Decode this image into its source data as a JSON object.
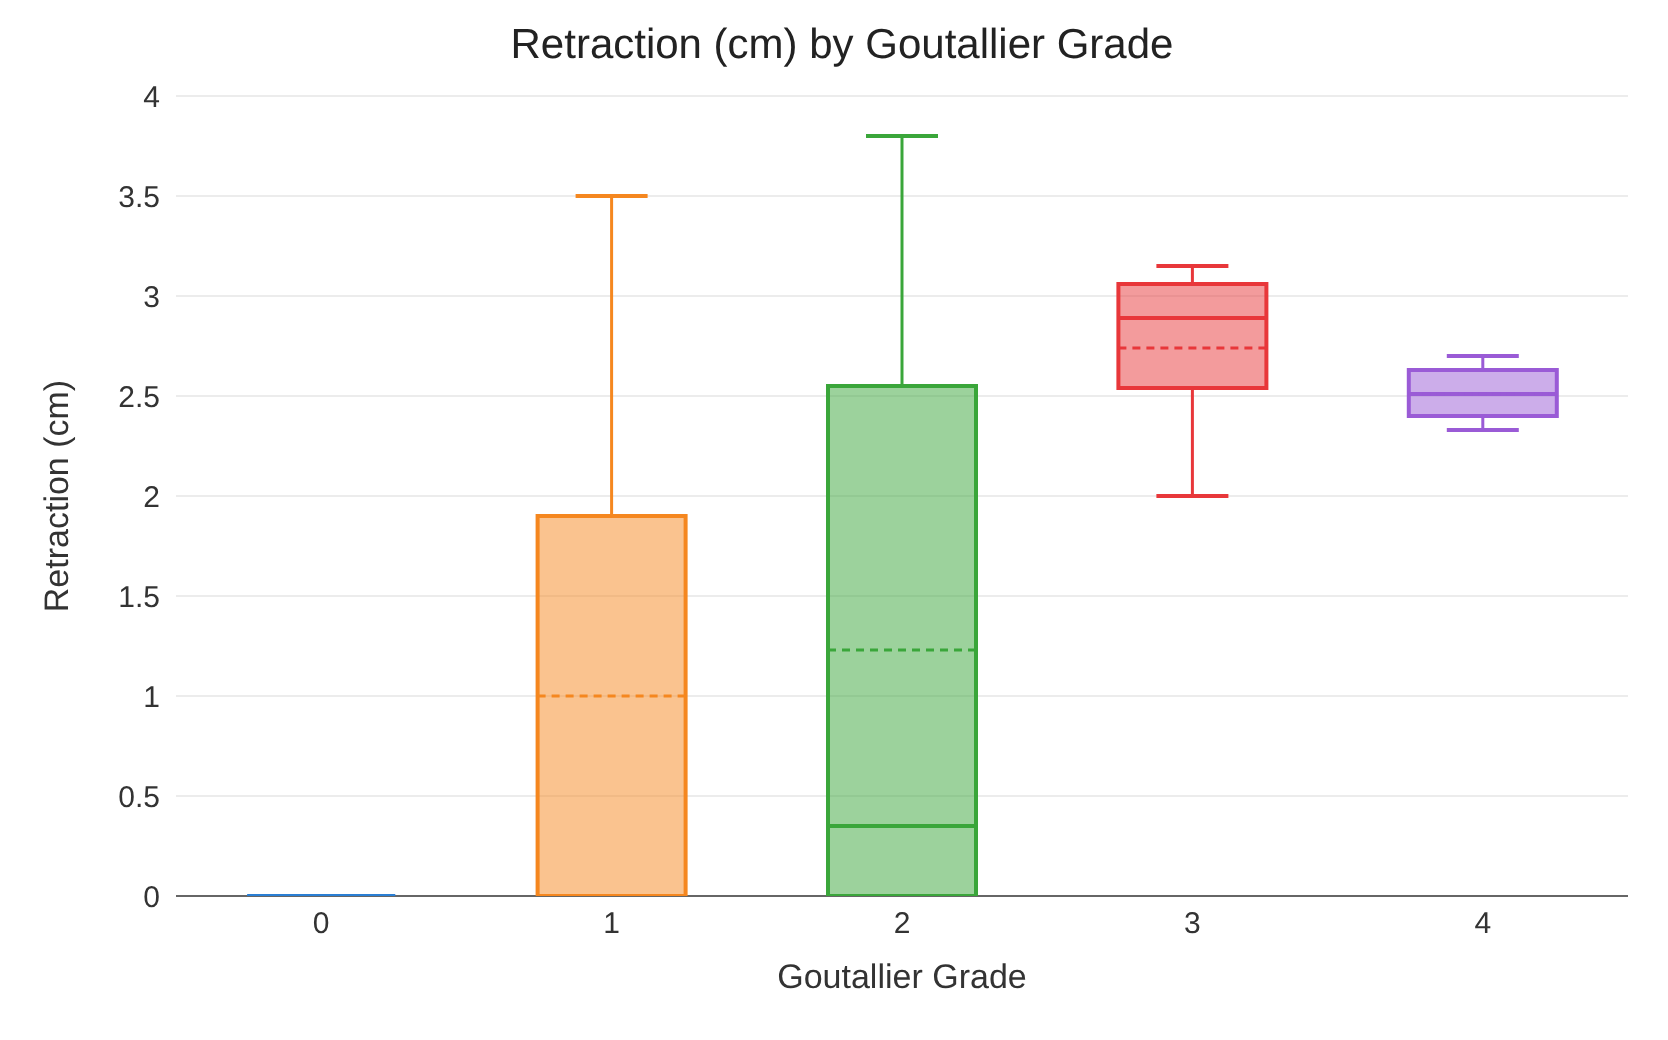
{
  "chart_data": {
    "type": "box",
    "title": "Retraction (cm) by Goutallier Grade",
    "xlabel": "Goutallier Grade",
    "ylabel": "Retraction (cm)",
    "categories": [
      "0",
      "1",
      "2",
      "3",
      "4"
    ],
    "colors": [
      "#2b7fd4",
      "#f5871f",
      "#3aa63a",
      "#e8373a",
      "#9a5bd6"
    ],
    "boxes": [
      {
        "low": 0,
        "q1": 0,
        "median": 0,
        "q3": 0,
        "high": 0,
        "mean": 0
      },
      {
        "low": 0,
        "q1": 0,
        "median": 0,
        "q3": 1.9,
        "high": 3.5,
        "mean": 1.0
      },
      {
        "low": 0,
        "q1": 0,
        "median": 0.35,
        "q3": 2.55,
        "high": 3.8,
        "mean": 1.23
      },
      {
        "low": 2.0,
        "q1": 2.54,
        "median": 2.89,
        "q3": 3.06,
        "high": 3.15,
        "mean": 2.74
      },
      {
        "low": 2.33,
        "q1": 2.4,
        "median": 2.51,
        "q3": 2.63,
        "high": 2.7,
        "mean": 2.51
      }
    ],
    "ylim": [
      0,
      4
    ],
    "yticks": [
      0,
      0.5,
      1,
      1.5,
      2,
      2.5,
      3,
      3.5,
      4
    ],
    "grid": "y"
  }
}
